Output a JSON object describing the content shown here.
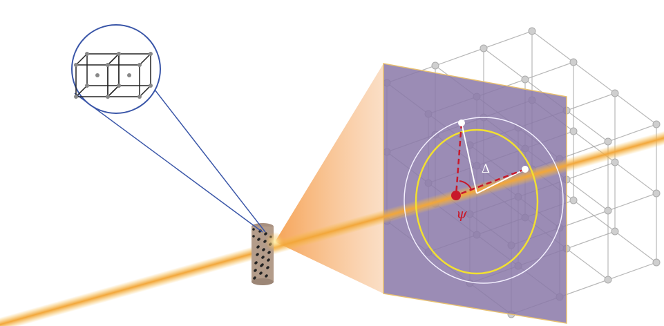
{
  "labels": {
    "delta": "Δ",
    "psi": "ψ"
  }
}
